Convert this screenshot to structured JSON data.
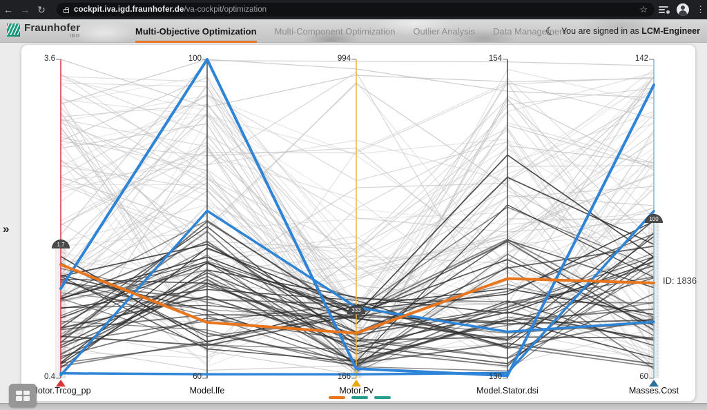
{
  "browser": {
    "url_host": "cockpit.iva.igd.fraunhofer.de",
    "url_path": "/va-cockpit/optimization",
    "icons": {
      "back": "back-arrow",
      "forward": "forward-arrow",
      "reload": "reload",
      "lock": "lock",
      "star": "bookmark-star",
      "media": "media-controls",
      "avatar": "profile-avatar",
      "menu": "kebab-menu"
    }
  },
  "header": {
    "logo_name": "Fraunhofer",
    "logo_sub": "IGD",
    "tabs": [
      {
        "label": "Multi-Objective Optimization",
        "active": true
      },
      {
        "label": "Multi-Component Optimization",
        "active": false
      },
      {
        "label": "Outlier Analysis",
        "active": false
      },
      {
        "label": "Data Management",
        "active": false
      }
    ],
    "signin_prefix": "You are signed in as",
    "signin_user": "LCM-Engineer"
  },
  "sidebar": {
    "expander_glyph": "»"
  },
  "chart_data": {
    "type": "parallel_coordinates",
    "axes": [
      {
        "label": "Motor.Trcog_pp",
        "min": 0.4,
        "max": 3.6,
        "min_label": "0.4",
        "max_label": "3.6",
        "axis_color": "#d9363c",
        "marker_color": "#d9363c",
        "slider_label": "1.7",
        "slider_value": 1.7,
        "brushed": true
      },
      {
        "label": "Model.lfe",
        "min": 60,
        "max": 100,
        "min_label": "60",
        "max_label": "100",
        "axis_color": "#4a4a4a"
      },
      {
        "label": "Motor.Pv",
        "min": 166,
        "max": 994,
        "min_label": "166",
        "max_label": "994",
        "axis_color": "#e7b93e",
        "marker_color": "#e5a817",
        "slider_label": "333",
        "slider_value": 333,
        "brushed": true
      },
      {
        "label": "Model.Stator.dsi",
        "min": 130,
        "max": 154,
        "min_label": "130",
        "max_label": "154",
        "axis_color": "#4a4a4a"
      },
      {
        "label": "Masses.Cost",
        "min": 60,
        "max": 142,
        "min_label": "60",
        "max_label": "142",
        "axis_color": "#86b3d1",
        "marker_color": "#2d6f99",
        "slider_label": "100",
        "slider_value": 100,
        "brushed": true
      }
    ],
    "highlighted_series": [
      {
        "name": "blue-peak-line",
        "color": "#2e84d6",
        "width": 4,
        "values": [
          1.3,
          100,
          191,
          130.2,
          135.4
        ]
      },
      {
        "name": "blue-bottom-line",
        "color": "#2e84d6",
        "width": 3.5,
        "values": [
          0.45,
          60.5,
          176,
          130.4,
          103
        ]
      },
      {
        "name": "blue-mid-line",
        "color": "#2e84d6",
        "width": 3.5,
        "values": [
          0.43,
          81,
          350,
          133.5,
          74.5
        ]
      },
      {
        "name": "selected-line",
        "color": "#e8761f",
        "width": 4,
        "values": [
          1.54,
          67,
          283,
          137.5,
          84.5
        ],
        "id_label": "ID: 1836"
      }
    ],
    "id_label": "ID: 1836",
    "background": {
      "light_count": 85,
      "light_color": "#c2c2c2",
      "dark_count": 40,
      "dark_color": "#2f2f2f"
    },
    "page_dashes": [
      "#e8761f",
      "#2a9d8f",
      "#2a9d8f"
    ]
  }
}
